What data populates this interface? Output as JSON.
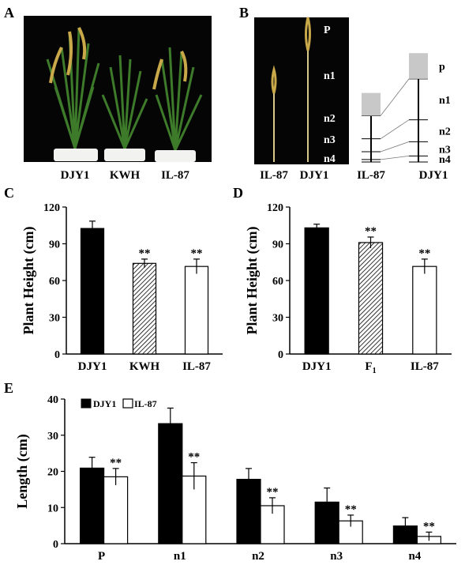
{
  "panel_letters": {
    "a": "A",
    "b": "B",
    "c": "C",
    "d": "D",
    "e": "E"
  },
  "colors": {
    "black_bar": "#000000",
    "white_bar": "#ffffff",
    "photo_bg": "#050505",
    "internode_shade": "#c8c8c8",
    "pot": "#f2f2f0",
    "leaf": "#3d7a2a",
    "panicle": "#c9a84a"
  },
  "panel_a": {
    "labels": [
      "DJY1",
      "KWH",
      "IL-87"
    ]
  },
  "panel_b": {
    "photo_labels": [
      "IL-87",
      "DJY1"
    ],
    "diagram_labels": [
      "IL-87",
      "DJY1"
    ],
    "segment_labels": [
      "p",
      "n1",
      "n2",
      "n3",
      "n4"
    ],
    "photo_segment_labels": [
      "P",
      "n1",
      "n2",
      "n3",
      "n4"
    ],
    "segment_lengths": {
      "IL-87": [
        18.5,
        18.7,
        10.5,
        6.3,
        2.0
      ],
      "DJY1": [
        20.9,
        33.2,
        17.8,
        11.5,
        4.9
      ]
    }
  },
  "chart_data": [
    {
      "panel": "C",
      "type": "bar",
      "ylabel": "Plant Height (cm)",
      "ylim": [
        0,
        120
      ],
      "yticks": [
        0,
        30,
        60,
        90,
        120
      ],
      "categories": [
        "DJY1",
        "KWH",
        "IL-87"
      ],
      "values": [
        102.5,
        74.0,
        71.5
      ],
      "errors": [
        6.0,
        3.5,
        6.0
      ],
      "fills": [
        "black",
        "hatched",
        "white"
      ],
      "significance": [
        "",
        "**",
        "**"
      ]
    },
    {
      "panel": "D",
      "type": "bar",
      "ylabel": "Plant Height (cm)",
      "ylim": [
        0,
        120
      ],
      "yticks": [
        0,
        30,
        60,
        90,
        120
      ],
      "categories": [
        "DJY1",
        "F",
        "IL-87"
      ],
      "category_subscripts": [
        "",
        "1",
        ""
      ],
      "values": [
        103.0,
        91.0,
        71.5
      ],
      "errors": [
        3.0,
        4.5,
        6.0
      ],
      "fills": [
        "black",
        "hatched",
        "white"
      ],
      "significance": [
        "",
        "**",
        "**"
      ]
    },
    {
      "panel": "E",
      "type": "bar",
      "ylabel": "Length (cm)",
      "ylim": [
        0,
        40
      ],
      "yticks": [
        0,
        10,
        20,
        30,
        40
      ],
      "categories": [
        "P",
        "n1",
        "n2",
        "n3",
        "n4"
      ],
      "legend": "top-left",
      "series": [
        {
          "name": "DJY1",
          "fill": "black",
          "values": [
            20.9,
            33.2,
            17.8,
            11.5,
            4.9
          ],
          "errors": [
            3.0,
            4.3,
            3.0,
            3.9,
            2.3
          ]
        },
        {
          "name": "IL-87",
          "fill": "white",
          "values": [
            18.5,
            18.7,
            10.5,
            6.3,
            2.0
          ],
          "errors": [
            2.3,
            3.7,
            2.2,
            1.6,
            1.2
          ]
        }
      ],
      "significance": "**"
    }
  ]
}
